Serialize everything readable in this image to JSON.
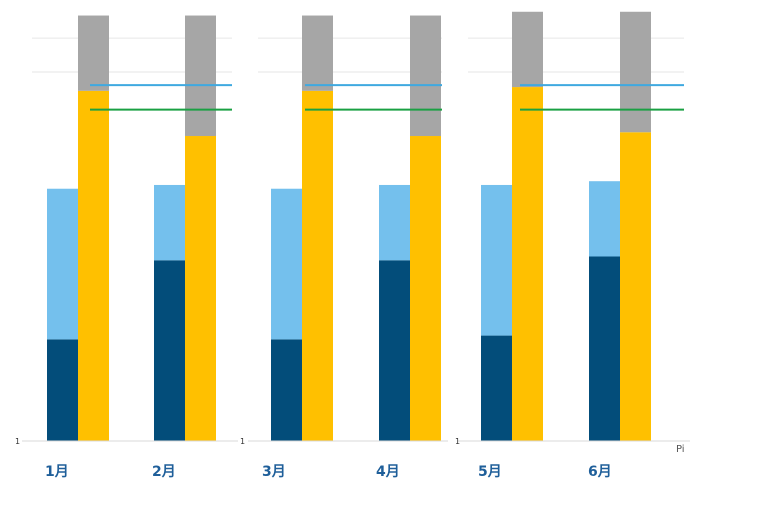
{
  "colors": {
    "dark_blue": "#034d7a",
    "light_blue": "#74c0ed",
    "yellow": "#ffc000",
    "gray": "#a6a6a6",
    "line_blue": "#3fa9e0",
    "line_green": "#1aa043",
    "month_text": "#1f5f9a",
    "grid": "#e6e6e6",
    "axis": "#d9d9d9"
  },
  "chart_data": {
    "type": "bar",
    "categories": [
      "1月",
      "2月",
      "3月",
      "4月",
      "5月",
      "6月"
    ],
    "series": [
      {
        "stack": "left",
        "values": [
          27,
          48,
          27,
          48,
          28,
          49
        ]
      },
      {
        "stack": "left",
        "values": [
          40,
          20,
          40,
          20,
          40,
          20
        ]
      },
      {
        "stack": "right",
        "values": [
          93,
          81,
          93,
          81,
          94,
          82
        ]
      },
      {
        "stack": "right",
        "values": [
          20,
          32,
          20,
          32,
          20,
          32
        ]
      }
    ],
    "reference_lines": [
      {
        "color_key": "line_blue",
        "value": 94.5
      },
      {
        "color_key": "line_green",
        "value": 88
      }
    ],
    "ylim": [
      0,
      115
    ],
    "y_axis_tick_labels": [
      "1",
      "1",
      "1"
    ],
    "panels": [
      [
        0,
        1
      ],
      [
        2,
        3
      ],
      [
        4,
        5
      ]
    ],
    "grid": true,
    "legend": "none",
    "fragment_text": "Pi"
  }
}
